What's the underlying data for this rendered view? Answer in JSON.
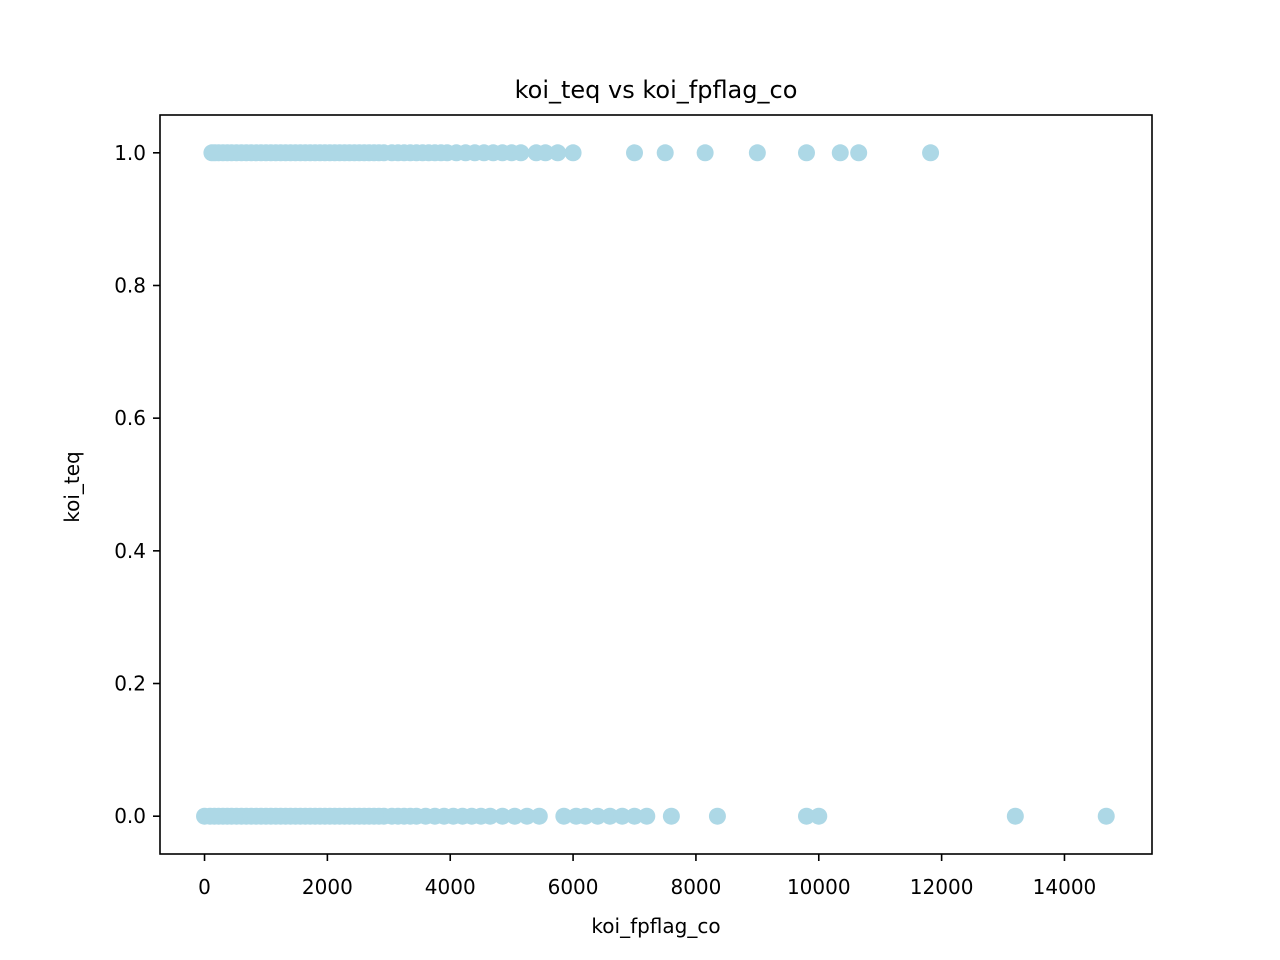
{
  "chart_data": {
    "type": "scatter",
    "title": "koi_teq vs koi_fpflag_co",
    "xlabel": "koi_fpflag_co",
    "ylabel": "koi_teq",
    "xlim": [
      -725,
      15425
    ],
    "ylim": [
      -0.057,
      1.057
    ],
    "xticks": [
      0,
      2000,
      4000,
      6000,
      8000,
      10000,
      12000,
      14000
    ],
    "xtick_labels": [
      "0",
      "2000",
      "4000",
      "6000",
      "8000",
      "10000",
      "12000",
      "14000"
    ],
    "yticks": [
      0.0,
      0.2,
      0.4,
      0.6,
      0.8,
      1.0
    ],
    "ytick_labels": [
      "0.0",
      "0.2",
      "0.4",
      "0.6",
      "0.8",
      "1.0"
    ],
    "grid": false,
    "marker_color": "#add8e6",
    "series": [
      {
        "x": [
          120,
          170,
          230,
          300,
          370,
          440,
          520,
          600,
          680,
          760,
          840,
          920,
          1000,
          1080,
          1160,
          1240,
          1320,
          1400,
          1480,
          1560,
          1640,
          1720,
          1800,
          1880,
          1960,
          2040,
          2120,
          2200,
          2280,
          2360,
          2440,
          2520,
          2600,
          2680,
          2760,
          2840,
          2920,
          3050,
          3150,
          3250,
          3350,
          3450,
          3550,
          3650,
          3750,
          3850,
          3950,
          4100,
          4250,
          4400,
          4550,
          4700,
          4850,
          5000,
          5150,
          5400,
          5550,
          5750,
          6000,
          7000,
          7500,
          8150,
          9000,
          9800,
          10350,
          10650,
          11820
        ],
        "y": [
          1,
          1,
          1,
          1,
          1,
          1,
          1,
          1,
          1,
          1,
          1,
          1,
          1,
          1,
          1,
          1,
          1,
          1,
          1,
          1,
          1,
          1,
          1,
          1,
          1,
          1,
          1,
          1,
          1,
          1,
          1,
          1,
          1,
          1,
          1,
          1,
          1,
          1,
          1,
          1,
          1,
          1,
          1,
          1,
          1,
          1,
          1,
          1,
          1,
          1,
          1,
          1,
          1,
          1,
          1,
          1,
          1,
          1,
          1,
          1,
          1,
          1,
          1,
          1,
          1,
          1,
          1
        ]
      },
      {
        "x": [
          0,
          90,
          160,
          230,
          300,
          370,
          440,
          520,
          600,
          680,
          760,
          840,
          920,
          1000,
          1080,
          1160,
          1240,
          1320,
          1400,
          1480,
          1560,
          1640,
          1720,
          1800,
          1880,
          1960,
          2040,
          2120,
          2200,
          2280,
          2360,
          2440,
          2520,
          2600,
          2680,
          2760,
          2840,
          2920,
          3050,
          3150,
          3250,
          3350,
          3450,
          3600,
          3750,
          3900,
          4050,
          4200,
          4350,
          4500,
          4650,
          4850,
          5050,
          5250,
          5450,
          5850,
          6050,
          6200,
          6400,
          6600,
          6800,
          7000,
          7200,
          7600,
          8350,
          9800,
          10000,
          13200,
          14680
        ],
        "y": [
          0,
          0,
          0,
          0,
          0,
          0,
          0,
          0,
          0,
          0,
          0,
          0,
          0,
          0,
          0,
          0,
          0,
          0,
          0,
          0,
          0,
          0,
          0,
          0,
          0,
          0,
          0,
          0,
          0,
          0,
          0,
          0,
          0,
          0,
          0,
          0,
          0,
          0,
          0,
          0,
          0,
          0,
          0,
          0,
          0,
          0,
          0,
          0,
          0,
          0,
          0,
          0,
          0,
          0,
          0,
          0,
          0,
          0,
          0,
          0,
          0,
          0,
          0,
          0,
          0,
          0,
          0,
          0,
          0
        ]
      }
    ]
  }
}
